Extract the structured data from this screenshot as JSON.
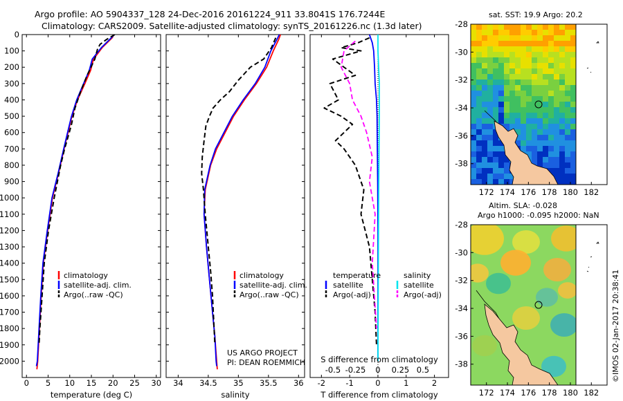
{
  "header": {
    "line1": "Argo profile: AO 5904337_128 24-Dec-2016 20161224_911 33.8041S 176.7244E",
    "line2": "Climatology: CARS2009. Satellite-adjusted climatology: synTS_20161226.nc (1.3d later)"
  },
  "colors": {
    "climatology": "#ff0000",
    "satellite": "#0000ff",
    "argo": "#000000",
    "salinity_sat": "#00e5ee",
    "salinity_argo": "#ff00ff",
    "land": "#f5c8a0"
  },
  "chart_data": [
    {
      "type": "line",
      "id": "temperature",
      "xlabel": "temperature (deg C)",
      "ylabel": "",
      "xlim": [
        -1,
        31
      ],
      "ylim": [
        2100,
        0
      ],
      "xticks": [
        0,
        5,
        10,
        15,
        20,
        25,
        30
      ],
      "yticks": [
        0,
        100,
        200,
        300,
        400,
        500,
        600,
        700,
        800,
        900,
        1000,
        1100,
        1200,
        1300,
        1400,
        1500,
        1600,
        1700,
        1800,
        1900,
        2000
      ],
      "legend": [
        "climatology",
        "satellite-adj. clim.",
        "Argo(..raw -QC)"
      ],
      "series": [
        {
          "name": "climatology",
          "color": "red",
          "dash": "",
          "x": [
            20.2,
            19.8,
            17.5,
            15.5,
            14.8,
            13.5,
            11.8,
            10.5,
            9.6,
            8.7,
            7.4,
            6.0,
            4.9,
            3.9,
            3.4,
            3.0,
            2.6,
            2.4
          ],
          "y": [
            0,
            20,
            80,
            150,
            220,
            300,
            400,
            500,
            600,
            700,
            850,
            1000,
            1200,
            1400,
            1600,
            1800,
            2000,
            2050
          ]
        },
        {
          "name": "satellite-adj. clim.",
          "color": "blue",
          "dash": "",
          "x": [
            20.3,
            19.6,
            17.3,
            15.2,
            14.5,
            13.2,
            11.6,
            10.4,
            9.5,
            8.6,
            7.3,
            5.9,
            4.8,
            3.8,
            3.3,
            2.9,
            2.5,
            2.3
          ],
          "y": [
            0,
            20,
            80,
            150,
            220,
            300,
            400,
            500,
            600,
            700,
            850,
            1000,
            1200,
            1400,
            1600,
            1800,
            2000,
            2030
          ]
        },
        {
          "name": "Argo(..raw -QC)",
          "color": "black",
          "dash": "7,4",
          "x": [
            20.4,
            18.5,
            17.0,
            16.4,
            15.8,
            14.0,
            12.5,
            11.2,
            10.4,
            9.9,
            8.8,
            7.9,
            6.4,
            5.1,
            4.1,
            3.6,
            3.1,
            2.9
          ],
          "y": [
            0,
            30,
            60,
            90,
            150,
            250,
            350,
            450,
            550,
            600,
            700,
            800,
            1000,
            1200,
            1400,
            1600,
            1800,
            1900
          ]
        }
      ]
    },
    {
      "type": "line",
      "id": "salinity",
      "xlabel": "salinity",
      "ylabel": "",
      "xlim": [
        33.8,
        36.1
      ],
      "ylim": [
        2100,
        0
      ],
      "xticks": [
        34,
        34.5,
        35,
        35.5,
        36
      ],
      "legend": [
        "climatology",
        "satellite-adj. clim.",
        "Argo(..raw -QC)"
      ],
      "series": [
        {
          "name": "climatology",
          "color": "red",
          "dash": "",
          "x": [
            35.7,
            35.67,
            35.58,
            35.47,
            35.3,
            35.1,
            34.92,
            34.78,
            34.64,
            34.54,
            34.45,
            34.43,
            34.47,
            34.52,
            34.57,
            34.61,
            34.64,
            34.65
          ],
          "y": [
            0,
            30,
            100,
            200,
            300,
            400,
            500,
            600,
            700,
            800,
            950,
            1100,
            1300,
            1500,
            1700,
            1850,
            2000,
            2050
          ]
        },
        {
          "name": "satellite-adj. clim.",
          "color": "blue",
          "dash": "",
          "x": [
            35.68,
            35.64,
            35.54,
            35.44,
            35.28,
            35.08,
            34.9,
            34.76,
            34.62,
            34.53,
            34.44,
            34.43,
            34.47,
            34.52,
            34.57,
            34.61,
            34.63,
            34.64
          ],
          "y": [
            0,
            30,
            100,
            200,
            300,
            400,
            500,
            600,
            700,
            800,
            950,
            1100,
            1300,
            1500,
            1700,
            1850,
            2000,
            2030
          ]
        },
        {
          "name": "Argo(..raw -QC)",
          "color": "black",
          "dash": "7,4",
          "x": [
            35.62,
            35.55,
            35.42,
            35.2,
            35.0,
            34.85,
            34.7,
            34.58,
            34.52,
            34.46,
            34.43,
            34.4,
            34.39,
            34.42,
            34.45,
            34.5,
            34.54,
            34.57,
            34.59,
            34.61
          ],
          "y": [
            20,
            80,
            150,
            200,
            280,
            350,
            400,
            450,
            500,
            560,
            650,
            750,
            850,
            950,
            1100,
            1300,
            1450,
            1600,
            1750,
            1900
          ]
        }
      ]
    },
    {
      "type": "line",
      "id": "difference",
      "xlabel": "T difference from climatology",
      "ylabel": "",
      "xlim": [
        -2.4,
        2.5
      ],
      "ylim": [
        2100,
        0
      ],
      "xticks_t": [
        -2,
        -1,
        0,
        1,
        2
      ],
      "xticks_s": [
        -0.5,
        -0.25,
        0,
        0.25,
        0.5
      ],
      "xticks_s_labels": [
        "-0.5",
        "-0.25",
        "0",
        "0.25",
        "0.5"
      ],
      "annotation": "S difference from climatology",
      "legend_left_title": "temperature",
      "legend_right_title": "salinity",
      "legend": [
        "satellite",
        "Argo(-adj)",
        "satellite",
        "Argo(-adj)"
      ],
      "series": [
        {
          "name": "satellite",
          "color": "blue",
          "dash": "",
          "x": [
            -0.3,
            -0.2,
            -0.15,
            -0.12,
            -0.1,
            -0.05,
            -0.03,
            -0.02,
            -0.01,
            0.0,
            0.0,
            0.0
          ],
          "y": [
            0,
            50,
            100,
            200,
            300,
            400,
            500,
            700,
            900,
            1200,
            1600,
            2000
          ]
        },
        {
          "name": "Argo(-adj)",
          "color": "black",
          "dash": "7,4",
          "x": [
            -0.3,
            -0.7,
            -1.3,
            -0.6,
            -1.6,
            -0.8,
            -1.7,
            -1.4,
            -1.9,
            -1.3,
            -0.9,
            -1.5,
            -1.2,
            -0.8,
            -0.5,
            -0.6,
            -0.3,
            -0.2,
            -0.1,
            -0.05
          ],
          "y": [
            20,
            50,
            80,
            100,
            150,
            250,
            300,
            400,
            450,
            500,
            550,
            650,
            700,
            800,
            950,
            1100,
            1300,
            1500,
            1700,
            1900
          ]
        },
        {
          "name": "satellite",
          "color": "cyan",
          "dash": "",
          "x": [
            0.0,
            0.0,
            0.05,
            0.05,
            0.04,
            0.03,
            0.02,
            0.01,
            0.0
          ],
          "y": [
            0,
            100,
            300,
            500,
            700,
            900,
            1200,
            1600,
            2000
          ]
        },
        {
          "name": "Argo(-adj)",
          "color": "magenta",
          "dash": "7,4",
          "x": [
            -0.8,
            -1.2,
            -1.3,
            -1.0,
            -0.9,
            -0.6,
            -0.4,
            -0.2,
            -0.3,
            -0.1,
            -0.2,
            -0.05
          ],
          "y": [
            40,
            100,
            200,
            300,
            400,
            500,
            600,
            750,
            900,
            1100,
            1400,
            1800
          ]
        }
      ]
    },
    {
      "type": "heatmap",
      "id": "sst_map",
      "title": "sat. SST: 19.9 Argo: 20.2",
      "xticks": [
        172,
        174,
        176,
        178,
        180,
        182
      ],
      "xlim": [
        170.5,
        183.5
      ],
      "yticks_labels": [
        "-28",
        "-30",
        "-32",
        "-34",
        "-36",
        "-38"
      ],
      "ylim": [
        -39.5,
        -28
      ],
      "profile_marker": {
        "lon": 176.72,
        "lat": -33.8
      }
    },
    {
      "type": "heatmap",
      "id": "sla_map",
      "title": "Altim. SLA: -0.028",
      "subtitle": "Argo h1000: -0.095 h2000: NaN",
      "xticks": [
        172,
        174,
        176,
        178,
        180,
        182
      ],
      "xlim": [
        170.5,
        183.5
      ],
      "yticks_labels": [
        "-28",
        "-30",
        "-32",
        "-34",
        "-36",
        "-38"
      ],
      "ylim": [
        -39.5,
        -28
      ],
      "profile_marker": {
        "lon": 176.72,
        "lat": -33.8
      }
    }
  ],
  "credits": {
    "project": "US ARGO PROJECT",
    "pi": "PI: DEAN ROEMMICH",
    "stamp": "©IMOS 02-Jan-2017 20:38:41"
  }
}
